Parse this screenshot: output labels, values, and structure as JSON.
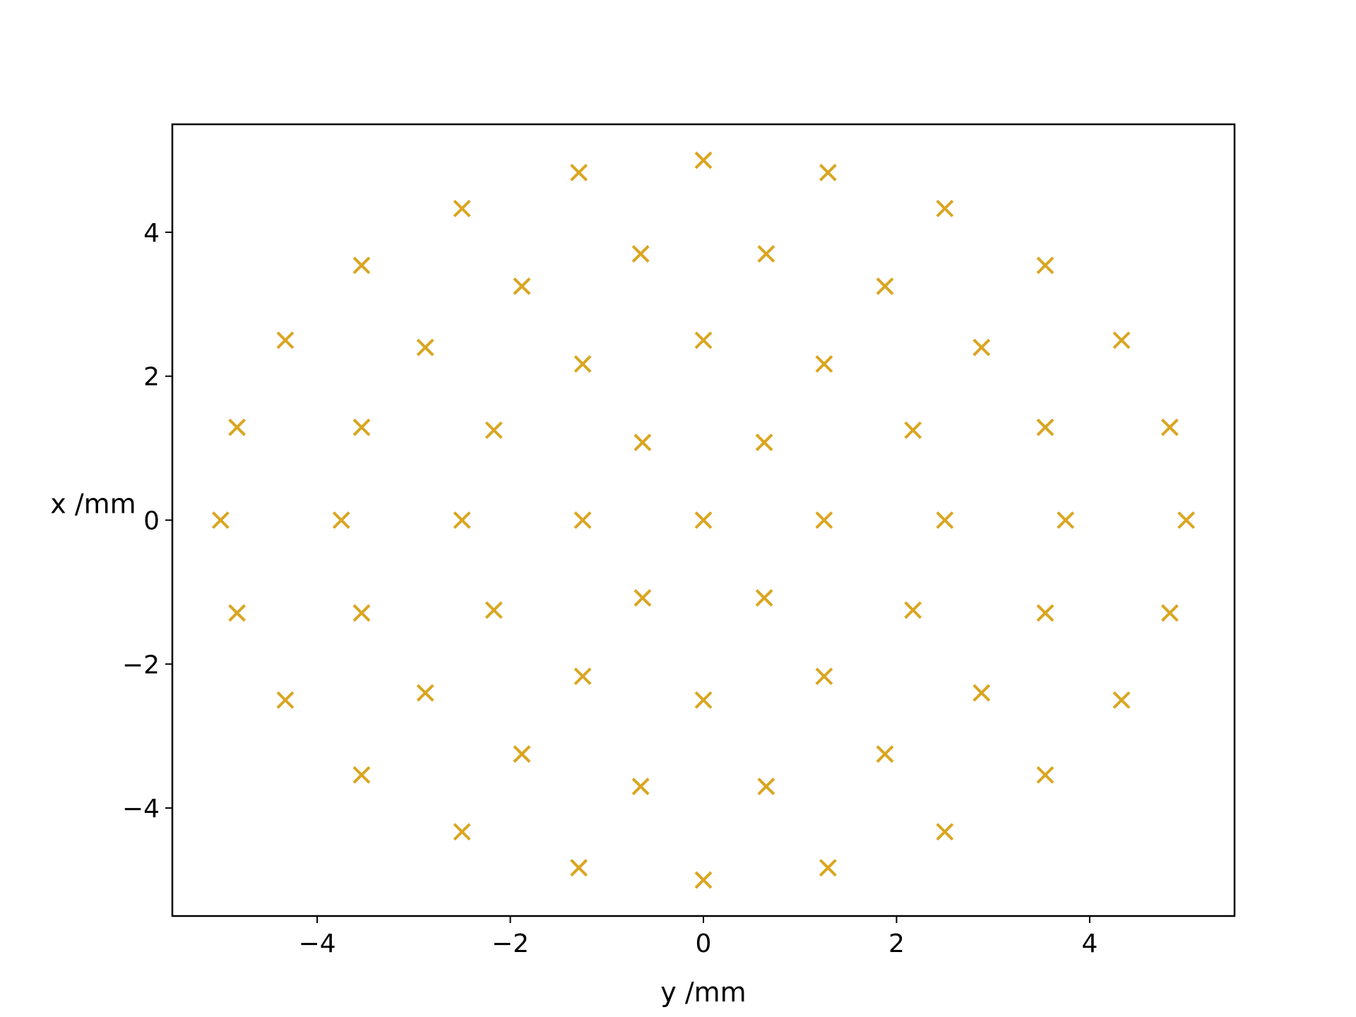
{
  "chart_data": {
    "type": "scatter",
    "title": "",
    "xlabel": "y /mm",
    "ylabel": "x /mm",
    "xlim": [
      -5.5,
      5.5
    ],
    "ylim": [
      -5.5,
      5.5
    ],
    "grid": false,
    "marker": "x",
    "colors": {
      "marker": "#DAA520",
      "axes": "#000000"
    },
    "xticks": [
      {
        "value": -4,
        "label": "−4"
      },
      {
        "value": -2,
        "label": "−2"
      },
      {
        "value": 0,
        "label": "0"
      },
      {
        "value": 2,
        "label": "2"
      },
      {
        "value": 4,
        "label": "4"
      }
    ],
    "yticks": [
      {
        "value": 4,
        "label": "4"
      },
      {
        "value": 2,
        "label": "2"
      },
      {
        "value": 0,
        "label": "0"
      },
      {
        "value": -2,
        "label": "−2"
      },
      {
        "value": -4,
        "label": "−4"
      }
    ],
    "points": [
      [
        0,
        5
      ],
      [
        -1.29,
        4.83
      ],
      [
        1.29,
        4.83
      ],
      [
        -2.5,
        4.33
      ],
      [
        2.5,
        4.33
      ],
      [
        -0.65,
        3.7
      ],
      [
        0.65,
        3.7
      ],
      [
        -3.54,
        3.54
      ],
      [
        3.54,
        3.54
      ],
      [
        -1.88,
        3.25
      ],
      [
        1.88,
        3.25
      ],
      [
        -4.33,
        2.5
      ],
      [
        0,
        2.5
      ],
      [
        4.33,
        2.5
      ],
      [
        -2.88,
        2.4
      ],
      [
        2.88,
        2.4
      ],
      [
        -1.25,
        2.17
      ],
      [
        1.25,
        2.17
      ],
      [
        -4.83,
        1.29
      ],
      [
        -3.54,
        1.29
      ],
      [
        3.54,
        1.29
      ],
      [
        4.83,
        1.29
      ],
      [
        -2.17,
        1.25
      ],
      [
        2.17,
        1.25
      ],
      [
        -0.63,
        1.08
      ],
      [
        0.63,
        1.08
      ],
      [
        -5,
        0
      ],
      [
        -3.75,
        0
      ],
      [
        -2.5,
        0
      ],
      [
        -1.25,
        0
      ],
      [
        0,
        0
      ],
      [
        1.25,
        0
      ],
      [
        2.5,
        0
      ],
      [
        3.75,
        0
      ],
      [
        5,
        0
      ],
      [
        -4.83,
        -1.29
      ],
      [
        -3.54,
        -1.29
      ],
      [
        3.54,
        -1.29
      ],
      [
        4.83,
        -1.29
      ],
      [
        -2.17,
        -1.25
      ],
      [
        2.17,
        -1.25
      ],
      [
        -0.63,
        -1.08
      ],
      [
        0.63,
        -1.08
      ],
      [
        -4.33,
        -2.5
      ],
      [
        0,
        -2.5
      ],
      [
        4.33,
        -2.5
      ],
      [
        -2.88,
        -2.4
      ],
      [
        2.88,
        -2.4
      ],
      [
        -1.25,
        -2.17
      ],
      [
        1.25,
        -2.17
      ],
      [
        -3.54,
        -3.54
      ],
      [
        3.54,
        -3.54
      ],
      [
        -1.88,
        -3.25
      ],
      [
        1.88,
        -3.25
      ],
      [
        -0.65,
        -3.7
      ],
      [
        0.65,
        -3.7
      ],
      [
        -2.5,
        -4.33
      ],
      [
        2.5,
        -4.33
      ],
      [
        -1.29,
        -4.83
      ],
      [
        1.29,
        -4.83
      ],
      [
        0,
        -5
      ]
    ]
  }
}
